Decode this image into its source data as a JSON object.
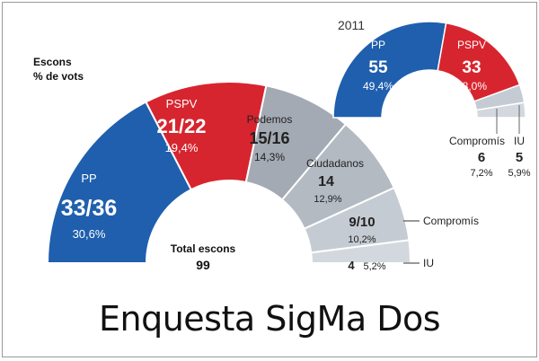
{
  "chart_data": [
    {
      "type": "pie",
      "subtype": "parliament-semicircle",
      "legend_labels": [
        "Escons",
        "% de vots"
      ],
      "total_label": "Total escons",
      "total_value": "99",
      "parties": [
        {
          "name": "PP",
          "seats": "33/36",
          "pct": "30,6%",
          "seats_mid": 34.5,
          "color": "#1f5fae"
        },
        {
          "name": "PSPV",
          "seats": "21/22",
          "pct": "19,4%",
          "seats_mid": 21.5,
          "color": "#d7252f"
        },
        {
          "name": "Podemos",
          "seats": "15/16",
          "pct": "14,3%",
          "seats_mid": 15.5,
          "color": "#a3aab3"
        },
        {
          "name": "Ciudadanos",
          "seats": "14",
          "pct": "12,9%",
          "seats_mid": 14,
          "color": "#b3bac2"
        },
        {
          "name": "Compromís",
          "seats": "9/10",
          "pct": "10,2%",
          "seats_mid": 9.5,
          "color": "#c5cbd2"
        },
        {
          "name": "IU",
          "seats": "4",
          "pct": "5,2%",
          "seats_mid": 4,
          "color": "#d3d8de"
        }
      ]
    },
    {
      "type": "pie",
      "subtype": "parliament-semicircle",
      "year": "2011",
      "parties": [
        {
          "name": "PP",
          "seats": "55",
          "pct": "49,4%",
          "seats_mid": 55,
          "color": "#1f5fae"
        },
        {
          "name": "PSPV",
          "seats": "33",
          "pct": "28,0%",
          "seats_mid": 33,
          "color": "#d7252f"
        },
        {
          "name": "Compromís",
          "seats": "6",
          "pct": "7,2%",
          "seats_mid": 6,
          "color": "#c5cbd2"
        },
        {
          "name": "IU",
          "seats": "5",
          "pct": "5,9%",
          "seats_mid": 5,
          "color": "#d3d8de"
        }
      ]
    }
  ],
  "caption": "Enquesta SigMa Dos"
}
